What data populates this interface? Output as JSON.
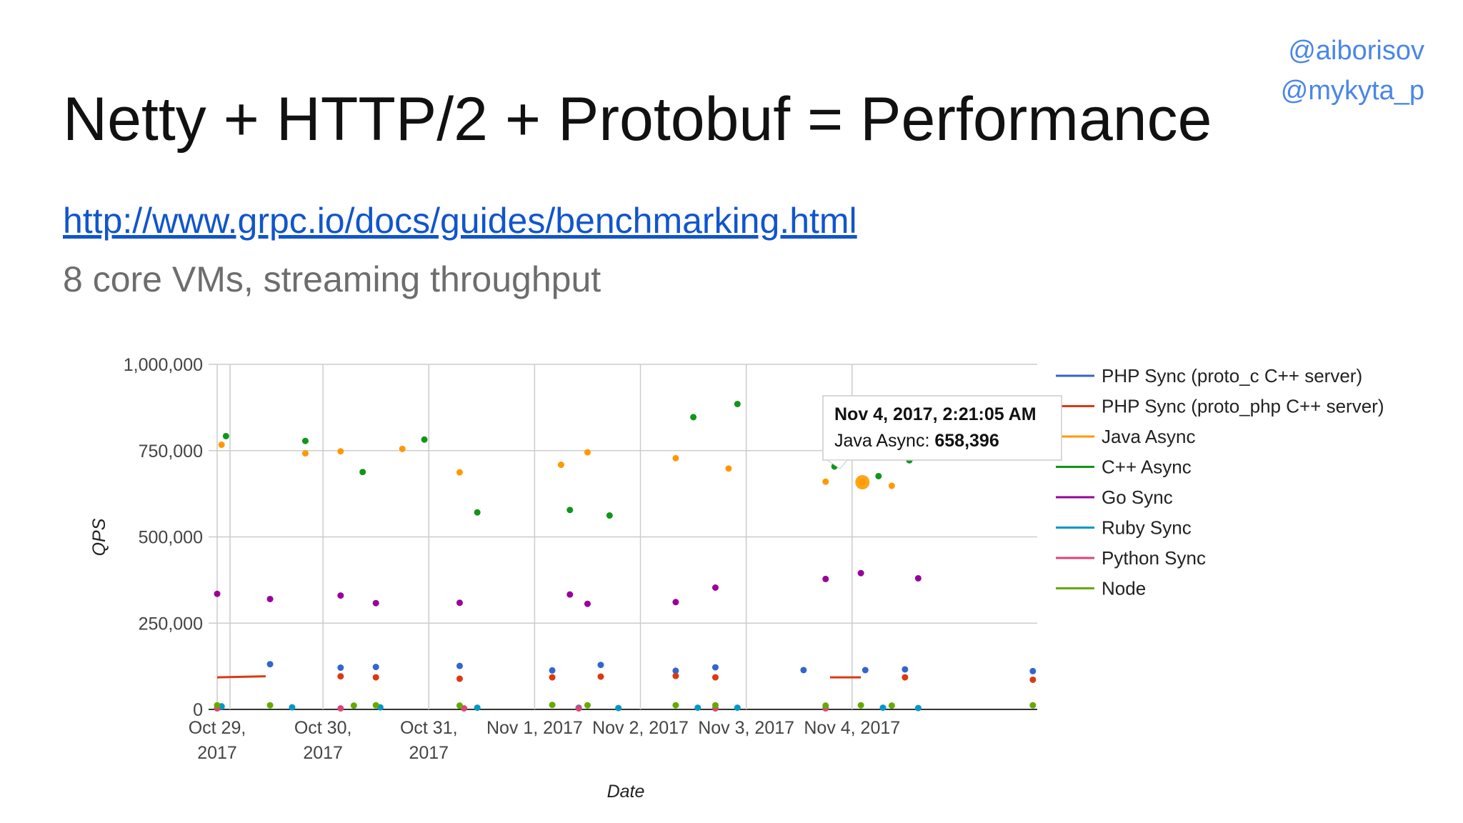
{
  "slide": {
    "handles": [
      "@aiborisov",
      "@mykyta_p"
    ],
    "title": "Netty + HTTP/2 + Protobuf = Performance",
    "link": "http://www.grpc.io/docs/guides/benchmarking.html",
    "subtitle": "8 core VMs, streaming throughput"
  },
  "colors": {
    "handle": "#4a86e8",
    "link": "#1155cc",
    "grid": "#cccccc"
  },
  "chart_data": {
    "type": "scatter",
    "xlabel": "Date",
    "ylabel": "QPS",
    "xlim": [
      "2017-10-29",
      "2017-11-05T18:00"
    ],
    "ylim": [
      0,
      1000000
    ],
    "y_ticks": [
      "0",
      "250,000",
      "500,000",
      "750,000",
      "1,000,000"
    ],
    "x_tick_dates": [
      "2017-10-29",
      "2017-10-30",
      "2017-10-31",
      "2017-11-01",
      "2017-11-02",
      "2017-11-03",
      "2017-11-04"
    ],
    "x_tick_labels": [
      [
        "Oct 29,",
        "2017"
      ],
      [
        "Oct 30,",
        "2017"
      ],
      [
        "Oct 31,",
        "2017"
      ],
      [
        "Nov 1, 2017"
      ],
      [
        "Nov 2, 2017"
      ],
      [
        "Nov 3, 2017"
      ],
      [
        "Nov 4, 2017"
      ]
    ],
    "grid": true,
    "legend_position": "right",
    "series": [
      {
        "name": "PHP Sync (proto_c C++ server)",
        "color": "#3366cc",
        "mode": "markers",
        "x": [
          "2017-10-29T01:00",
          "2017-10-29T12:00",
          "2017-10-30T04:00",
          "2017-10-30T12:00",
          "2017-10-31T07:00",
          "2017-11-01T04:00",
          "2017-11-01T15:00",
          "2017-11-02T08:00",
          "2017-11-02T17:00",
          "2017-11-03T13:00",
          "2017-11-04T03:00",
          "2017-11-04T12:00",
          "2017-11-05T17:00"
        ],
        "y": [
          8000,
          131000,
          121000,
          123000,
          126000,
          113000,
          129000,
          112000,
          122000,
          114000,
          114000,
          116000,
          111000
        ]
      },
      {
        "name": "PHP Sync (proto_php C++ server)",
        "color": "#dc3912",
        "mode": "mixed",
        "segments": [
          {
            "x": [
              "2017-10-29T00:00",
              "2017-10-29T11:00"
            ],
            "y": [
              93000,
              96000
            ]
          },
          {
            "x": [
              "2017-11-03T19:00",
              "2017-11-04T02:00"
            ],
            "y": [
              93000,
              93000
            ]
          }
        ],
        "x": [
          "2017-10-30T04:00",
          "2017-10-30T12:00",
          "2017-10-31T07:00",
          "2017-11-01T04:00",
          "2017-11-01T15:00",
          "2017-11-02T08:00",
          "2017-11-02T17:00",
          "2017-11-04T12:00",
          "2017-11-05T17:00"
        ],
        "y": [
          96000,
          93000,
          89000,
          93000,
          95000,
          97000,
          93000,
          93000,
          86000
        ]
      },
      {
        "name": "Java Async",
        "color": "#ff9900",
        "mode": "markers",
        "x": [
          "2017-10-29T01:00",
          "2017-10-29T20:00",
          "2017-10-30T04:00",
          "2017-10-30T18:00",
          "2017-10-31T07:00",
          "2017-11-01T06:00",
          "2017-11-01T12:00",
          "2017-11-02T08:00",
          "2017-11-02T20:00",
          "2017-11-03T18:00",
          "2017-11-04T02:21",
          "2017-11-04T09:00"
        ],
        "y": [
          767000,
          742000,
          748000,
          755000,
          687000,
          709000,
          745000,
          728000,
          698000,
          660000,
          658396,
          648000
        ]
      },
      {
        "name": "C++ Async",
        "color": "#109618",
        "mode": "markers",
        "x": [
          "2017-10-29T02:00",
          "2017-10-30T19:00",
          "2017-10-30T09:00",
          "2017-10-30T23:00",
          "2017-10-31T11:00",
          "2017-11-01T08:00",
          "2017-11-01T17:00",
          "2017-11-02T12:00",
          "2017-11-02T22:00",
          "2017-11-03T20:00",
          "2017-11-04T06:00",
          "2017-11-04T13:00"
        ],
        "y": [
          792000,
          778000,
          688000,
          782000,
          571000,
          578000,
          562000,
          847000,
          885000,
          704000,
          676000,
          722000
        ],
        "x_fix": [
          "2017-10-29T02:00",
          "2017-10-29T20:00",
          "2017-10-30T09:00",
          "2017-10-30T23:00",
          "2017-10-31T11:00",
          "2017-11-01T08:00",
          "2017-11-01T17:00",
          "2017-11-02T12:00",
          "2017-11-02T22:00",
          "2017-11-03T20:00",
          "2017-11-04T06:00",
          "2017-11-04T13:00"
        ]
      },
      {
        "name": "Go Sync",
        "color": "#990099",
        "mode": "markers",
        "x": [
          "2017-10-29T00:00",
          "2017-10-29T12:00",
          "2017-10-30T04:00",
          "2017-10-30T12:00",
          "2017-10-31T07:00",
          "2017-11-01T08:00",
          "2017-11-01T12:00",
          "2017-11-02T08:00",
          "2017-11-02T17:00",
          "2017-11-03T18:00",
          "2017-11-04T02:00",
          "2017-11-04T15:00"
        ],
        "y": [
          335000,
          320000,
          330000,
          308000,
          309000,
          333000,
          306000,
          311000,
          353000,
          378000,
          395000,
          380000
        ]
      },
      {
        "name": "Ruby Sync",
        "color": "#0099c6",
        "mode": "markers",
        "x": [
          "2017-10-29T01:00",
          "2017-10-29T17:00",
          "2017-10-30T13:00",
          "2017-10-31T11:00",
          "2017-11-01T10:00",
          "2017-11-01T19:00",
          "2017-11-02T13:00",
          "2017-11-02T22:00",
          "2017-11-04T07:00",
          "2017-11-04T15:00"
        ],
        "y": [
          9000,
          6000,
          6000,
          5000,
          5000,
          4000,
          5000,
          5000,
          5000,
          4000
        ]
      },
      {
        "name": "Python Sync",
        "color": "#dd4477",
        "mode": "markers",
        "x": [
          "2017-10-29T00:00",
          "2017-10-30T04:00",
          "2017-10-31T08:00",
          "2017-11-01T10:00",
          "2017-11-02T17:00",
          "2017-11-03T18:00"
        ],
        "y": [
          3000,
          3000,
          3000,
          3000,
          3000,
          3000
        ]
      },
      {
        "name": "Node",
        "color": "#66aa00",
        "mode": "markers",
        "x": [
          "2017-10-29T00:00",
          "2017-10-29T12:00",
          "2017-10-30T07:00",
          "2017-10-30T12:00",
          "2017-10-31T07:00",
          "2017-11-01T04:00",
          "2017-11-01T12:00",
          "2017-11-02T08:00",
          "2017-11-02T17:00",
          "2017-11-03T18:00",
          "2017-11-04T02:00",
          "2017-11-04T09:00",
          "2017-11-05T17:00"
        ],
        "y": [
          12000,
          12000,
          11000,
          12000,
          11000,
          13000,
          12000,
          12000,
          12000,
          11000,
          12000,
          11000,
          12000
        ]
      }
    ],
    "tooltip": {
      "title": "Nov 4, 2017, 2:21:05 AM",
      "series": "Java Async",
      "label": "Java Async: ",
      "value": "658,396",
      "x": "2017-11-04T02:21",
      "y": 658396
    }
  }
}
